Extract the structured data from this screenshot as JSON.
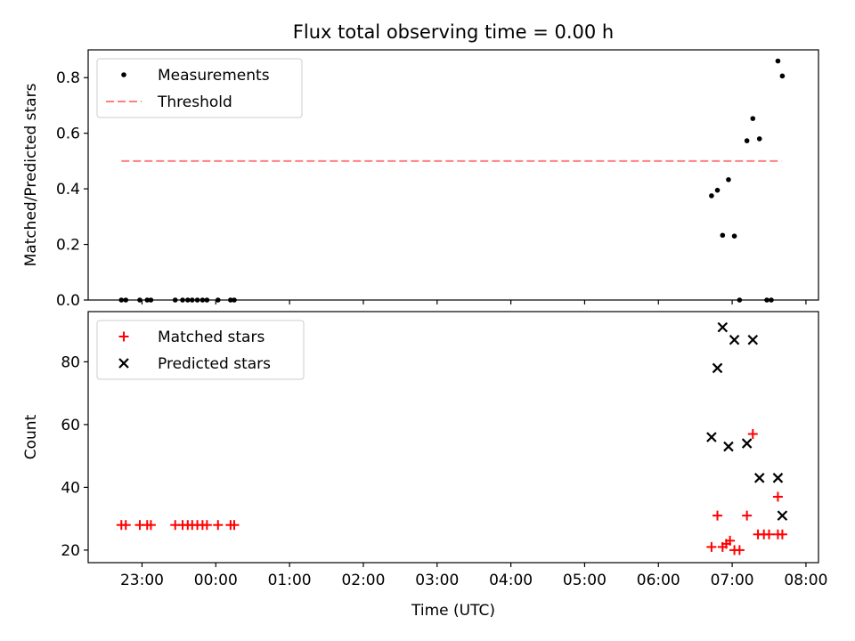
{
  "chart_data": {
    "title": "Flux total observing time = 0.00 h",
    "xlabel": "Time (UTC)",
    "x_unit": "hours since 22:00 UTC",
    "x_ticks": [
      {
        "t": 1,
        "label": "23:00"
      },
      {
        "t": 2,
        "label": "00:00"
      },
      {
        "t": 3,
        "label": "01:00"
      },
      {
        "t": 4,
        "label": "02:00"
      },
      {
        "t": 5,
        "label": "03:00"
      },
      {
        "t": 6,
        "label": "04:00"
      },
      {
        "t": 7,
        "label": "05:00"
      },
      {
        "t": 8,
        "label": "06:00"
      },
      {
        "t": 9,
        "label": "07:00"
      },
      {
        "t": 10,
        "label": "08:00"
      }
    ],
    "xlim": [
      0.27,
      10.17
    ],
    "panels": [
      {
        "type": "scatter",
        "ylabel": "Matched/Predicted stars",
        "ylim": [
          0,
          0.9
        ],
        "yticks": [
          {
            "v": 0.0,
            "label": "0.0"
          },
          {
            "v": 0.2,
            "label": "0.2"
          },
          {
            "v": 0.4,
            "label": "0.4"
          },
          {
            "v": 0.6,
            "label": "0.6"
          },
          {
            "v": 0.8,
            "label": "0.8"
          }
        ],
        "legend": {
          "position": "upper-left",
          "entries": [
            {
              "label": "Measurements",
              "marker": "dot",
              "color": "#000000"
            },
            {
              "label": "Threshold",
              "marker": "dashed-line",
              "color": "#ff7f7f"
            }
          ]
        },
        "threshold": {
          "name": "Threshold",
          "value": 0.5,
          "x_range": [
            0.72,
            9.67
          ],
          "color": "#ff7f7f"
        },
        "series": [
          {
            "name": "Measurements",
            "marker": "dot",
            "color": "#000000",
            "points": [
              [
                0.72,
                0.0
              ],
              [
                0.78,
                0.0
              ],
              [
                0.97,
                0.0
              ],
              [
                1.07,
                0.0
              ],
              [
                1.12,
                0.0
              ],
              [
                1.45,
                0.0
              ],
              [
                1.55,
                0.0
              ],
              [
                1.62,
                0.0
              ],
              [
                1.68,
                0.0
              ],
              [
                1.75,
                0.0
              ],
              [
                1.82,
                0.0
              ],
              [
                1.88,
                0.0
              ],
              [
                2.03,
                0.0
              ],
              [
                2.2,
                0.0
              ],
              [
                2.25,
                0.0
              ],
              [
                8.72,
                0.375
              ],
              [
                8.8,
                0.395
              ],
              [
                8.87,
                0.233
              ],
              [
                8.95,
                0.433
              ],
              [
                9.03,
                0.23
              ],
              [
                9.1,
                0.0
              ],
              [
                9.2,
                0.573
              ],
              [
                9.28,
                0.653
              ],
              [
                9.37,
                0.58
              ],
              [
                9.47,
                0.0
              ],
              [
                9.53,
                0.0
              ],
              [
                9.62,
                0.86
              ],
              [
                9.68,
                0.806
              ]
            ]
          }
        ]
      },
      {
        "type": "scatter",
        "ylabel": "Count",
        "ylim": [
          16,
          96
        ],
        "yticks": [
          {
            "v": 20,
            "label": "20"
          },
          {
            "v": 40,
            "label": "40"
          },
          {
            "v": 60,
            "label": "60"
          },
          {
            "v": 80,
            "label": "80"
          }
        ],
        "legend": {
          "position": "upper-left",
          "entries": [
            {
              "label": "Matched stars",
              "marker": "plus",
              "color": "#ff0000"
            },
            {
              "label": "Predicted stars",
              "marker": "x",
              "color": "#000000"
            }
          ]
        },
        "series": [
          {
            "name": "Matched stars",
            "marker": "plus",
            "color": "#ff0000",
            "points": [
              [
                0.72,
                28
              ],
              [
                0.78,
                28
              ],
              [
                0.97,
                28
              ],
              [
                1.07,
                28
              ],
              [
                1.12,
                28
              ],
              [
                1.45,
                28
              ],
              [
                1.55,
                28
              ],
              [
                1.62,
                28
              ],
              [
                1.68,
                28
              ],
              [
                1.75,
                28
              ],
              [
                1.82,
                28
              ],
              [
                1.88,
                28
              ],
              [
                2.03,
                28
              ],
              [
                2.2,
                28
              ],
              [
                2.25,
                28
              ],
              [
                8.72,
                21
              ],
              [
                8.8,
                31
              ],
              [
                8.87,
                21
              ],
              [
                8.92,
                22
              ],
              [
                8.97,
                23
              ],
              [
                9.03,
                20
              ],
              [
                9.1,
                20
              ],
              [
                9.2,
                31
              ],
              [
                9.28,
                57
              ],
              [
                9.35,
                25
              ],
              [
                9.43,
                25
              ],
              [
                9.5,
                25
              ],
              [
                9.62,
                25
              ],
              [
                9.68,
                25
              ],
              [
                9.62,
                37
              ]
            ]
          },
          {
            "name": "Predicted stars",
            "marker": "x",
            "color": "#000000",
            "points": [
              [
                8.72,
                56
              ],
              [
                8.8,
                78
              ],
              [
                8.87,
                91
              ],
              [
                8.95,
                53
              ],
              [
                9.03,
                87
              ],
              [
                9.2,
                54
              ],
              [
                9.28,
                87
              ],
              [
                9.37,
                43
              ],
              [
                9.62,
                43
              ],
              [
                9.68,
                31
              ]
            ]
          }
        ]
      }
    ]
  }
}
